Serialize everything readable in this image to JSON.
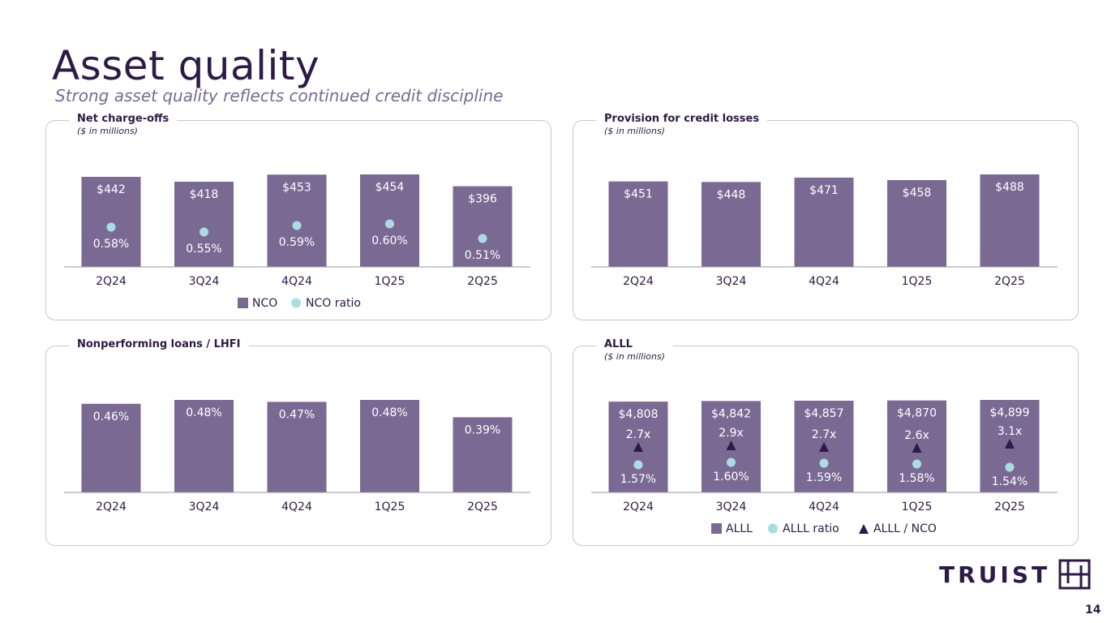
{
  "page": {
    "title": "Asset quality",
    "subtitle": "Strong asset quality reflects continued credit discipline",
    "page_number": "14",
    "logo_text": "TRUIST"
  },
  "colors": {
    "bar": "#7a6a93",
    "circle": "#a9dde2",
    "triangle": "#2e1a47",
    "bar_label": "#ffffff",
    "axis_label": "#2e1a47"
  },
  "chart_data": [
    {
      "id": "nco",
      "type": "bar",
      "title": "Net charge-offs",
      "subtitle": "($ in millions)",
      "categories": [
        "2Q24",
        "3Q24",
        "4Q24",
        "1Q25",
        "2Q25"
      ],
      "series": [
        {
          "name": "NCO",
          "marker": "square",
          "values": [
            442,
            418,
            453,
            454,
            396
          ],
          "labels": [
            "$442",
            "$418",
            "$453",
            "$454",
            "$396"
          ]
        },
        {
          "name": "NCO ratio",
          "marker": "circle",
          "values": [
            0.58,
            0.55,
            0.59,
            0.6,
            0.51
          ],
          "labels": [
            "0.58%",
            "0.55%",
            "0.59%",
            "0.60%",
            "0.51%"
          ]
        }
      ],
      "ylim": [
        0,
        454
      ],
      "legend": "bottom"
    },
    {
      "id": "provision",
      "type": "bar",
      "title": "Provision for credit losses",
      "subtitle": "($ in millions)",
      "categories": [
        "2Q24",
        "3Q24",
        "4Q24",
        "1Q25",
        "2Q25"
      ],
      "series": [
        {
          "values": [
            451,
            448,
            471,
            458,
            488
          ],
          "labels": [
            "$451",
            "$448",
            "$471",
            "$458",
            "$488"
          ]
        }
      ],
      "ylim": [
        0,
        488
      ]
    },
    {
      "id": "npl",
      "type": "bar",
      "title": "Nonperforming loans / LHFI",
      "subtitle": "",
      "categories": [
        "2Q24",
        "3Q24",
        "4Q24",
        "1Q25",
        "2Q25"
      ],
      "series": [
        {
          "values": [
            0.46,
            0.48,
            0.47,
            0.48,
            0.39
          ],
          "labels": [
            "0.46%",
            "0.48%",
            "0.47%",
            "0.48%",
            "0.39%"
          ]
        }
      ],
      "ylim": [
        0,
        0.48
      ]
    },
    {
      "id": "alll",
      "type": "bar",
      "title": "ALLL",
      "subtitle": "($ in millions)",
      "categories": [
        "2Q24",
        "3Q24",
        "4Q24",
        "1Q25",
        "2Q25"
      ],
      "series": [
        {
          "name": "ALLL",
          "marker": "square",
          "values": [
            4808,
            4842,
            4857,
            4870,
            4899
          ],
          "labels": [
            "$4,808",
            "$4,842",
            "$4,857",
            "$4,870",
            "$4,899"
          ]
        },
        {
          "name": "ALLL ratio",
          "marker": "circle",
          "values": [
            1.57,
            1.6,
            1.59,
            1.58,
            1.54
          ],
          "labels": [
            "1.57%",
            "1.60%",
            "1.59%",
            "1.58%",
            "1.54%"
          ]
        },
        {
          "name": "ALLL / NCO",
          "marker": "triangle",
          "values": [
            2.7,
            2.9,
            2.7,
            2.6,
            3.1
          ],
          "labels": [
            "2.7x",
            "2.9x",
            "2.7x",
            "2.6x",
            "3.1x"
          ]
        }
      ],
      "ylim": [
        0,
        4899
      ],
      "legend": "bottom"
    }
  ]
}
